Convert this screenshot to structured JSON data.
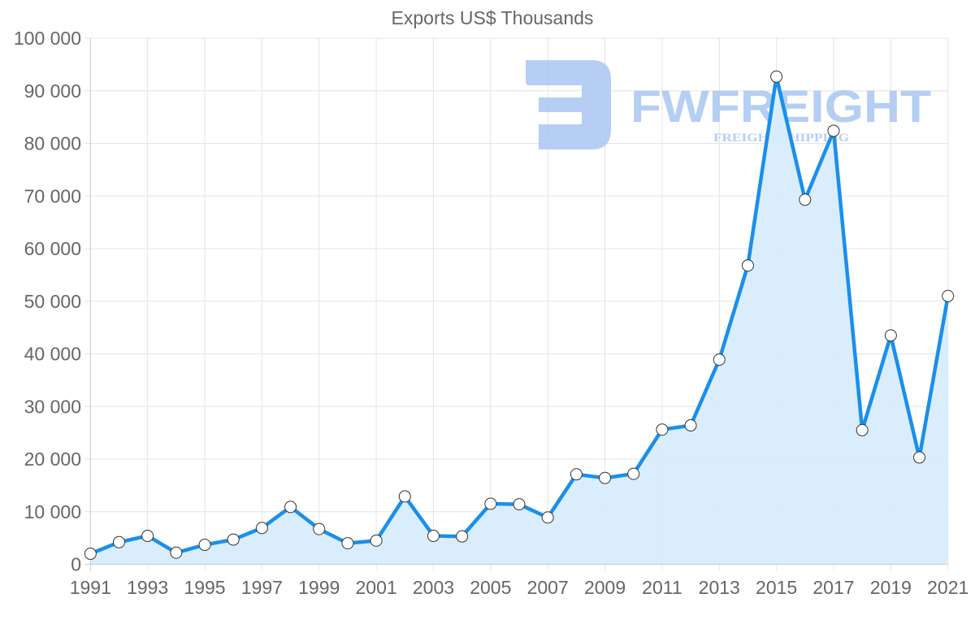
{
  "chart_data": {
    "type": "line",
    "title": "Exports US$ Thousands",
    "xlabel": "",
    "ylabel": "",
    "x": [
      1991,
      1992,
      1993,
      1994,
      1995,
      1996,
      1997,
      1998,
      1999,
      2000,
      2001,
      2002,
      2003,
      2004,
      2005,
      2006,
      2007,
      2008,
      2009,
      2010,
      2011,
      2012,
      2013,
      2014,
      2015,
      2016,
      2017,
      2018,
      2019,
      2020,
      2021
    ],
    "series": [
      {
        "name": "Exports US$ Thousands",
        "values": [
          2000,
          4200,
          5400,
          2200,
          3700,
          4700,
          6900,
          10900,
          6700,
          4000,
          4500,
          12900,
          5400,
          5300,
          11500,
          11400,
          8900,
          17100,
          16400,
          17200,
          25600,
          26400,
          38900,
          56800,
          92700,
          69300,
          82400,
          25500,
          43500,
          20300,
          51000
        ],
        "line_color": "#1A8FEB",
        "fill_color": "#D8ECFC",
        "marker_fill": "#FFFFFF",
        "marker_stroke": "#333333",
        "filled_area": true
      }
    ],
    "x_tick_labels": [
      "1991",
      "1993",
      "1995",
      "1997",
      "1999",
      "2001",
      "2003",
      "2005",
      "2007",
      "2009",
      "2011",
      "2013",
      "2015",
      "2017",
      "2019",
      "2021"
    ],
    "y_tick_labels": [
      "0",
      "10 000",
      "20 000",
      "30 000",
      "40 000",
      "50 000",
      "60 000",
      "70 000",
      "80 000",
      "90 000",
      "100 000"
    ],
    "y_ticks": [
      0,
      10000,
      20000,
      30000,
      40000,
      50000,
      60000,
      70000,
      80000,
      90000,
      100000
    ],
    "ylim": [
      0,
      100000
    ],
    "xlim": [
      1991,
      2021
    ],
    "grid": true,
    "legend": "none"
  },
  "watermark": {
    "brand": "FWFREIGHT",
    "tagline": "FREIGHT SHIPPING",
    "color": "#A9C6F2"
  },
  "colors": {
    "grid": "#E4E4E4",
    "axis": "#CCCCCC",
    "text": "#666666"
  }
}
